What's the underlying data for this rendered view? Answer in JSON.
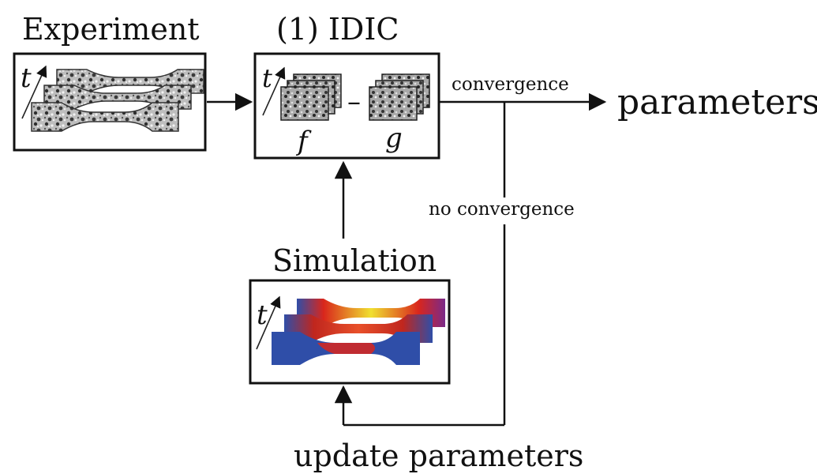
{
  "labels": {
    "experiment": "Experiment",
    "idic": "(1) IDIC",
    "simulation": "Simulation",
    "convergence": "convergence",
    "no_convergence": "no convergence",
    "parameters": "parameters",
    "update_parameters": "update parameters",
    "time_symbol": "t",
    "f_symbol": "f",
    "g_symbol": "g",
    "minus": "–"
  },
  "colors": {
    "speckle_dark": "#3a3a3a",
    "speckle_light": "#d8d8d8",
    "sim_blue": "#2f4ea8",
    "sim_red": "#d9261c",
    "sim_yellow": "#f0e030",
    "sim_purple": "#7a2a8a"
  }
}
